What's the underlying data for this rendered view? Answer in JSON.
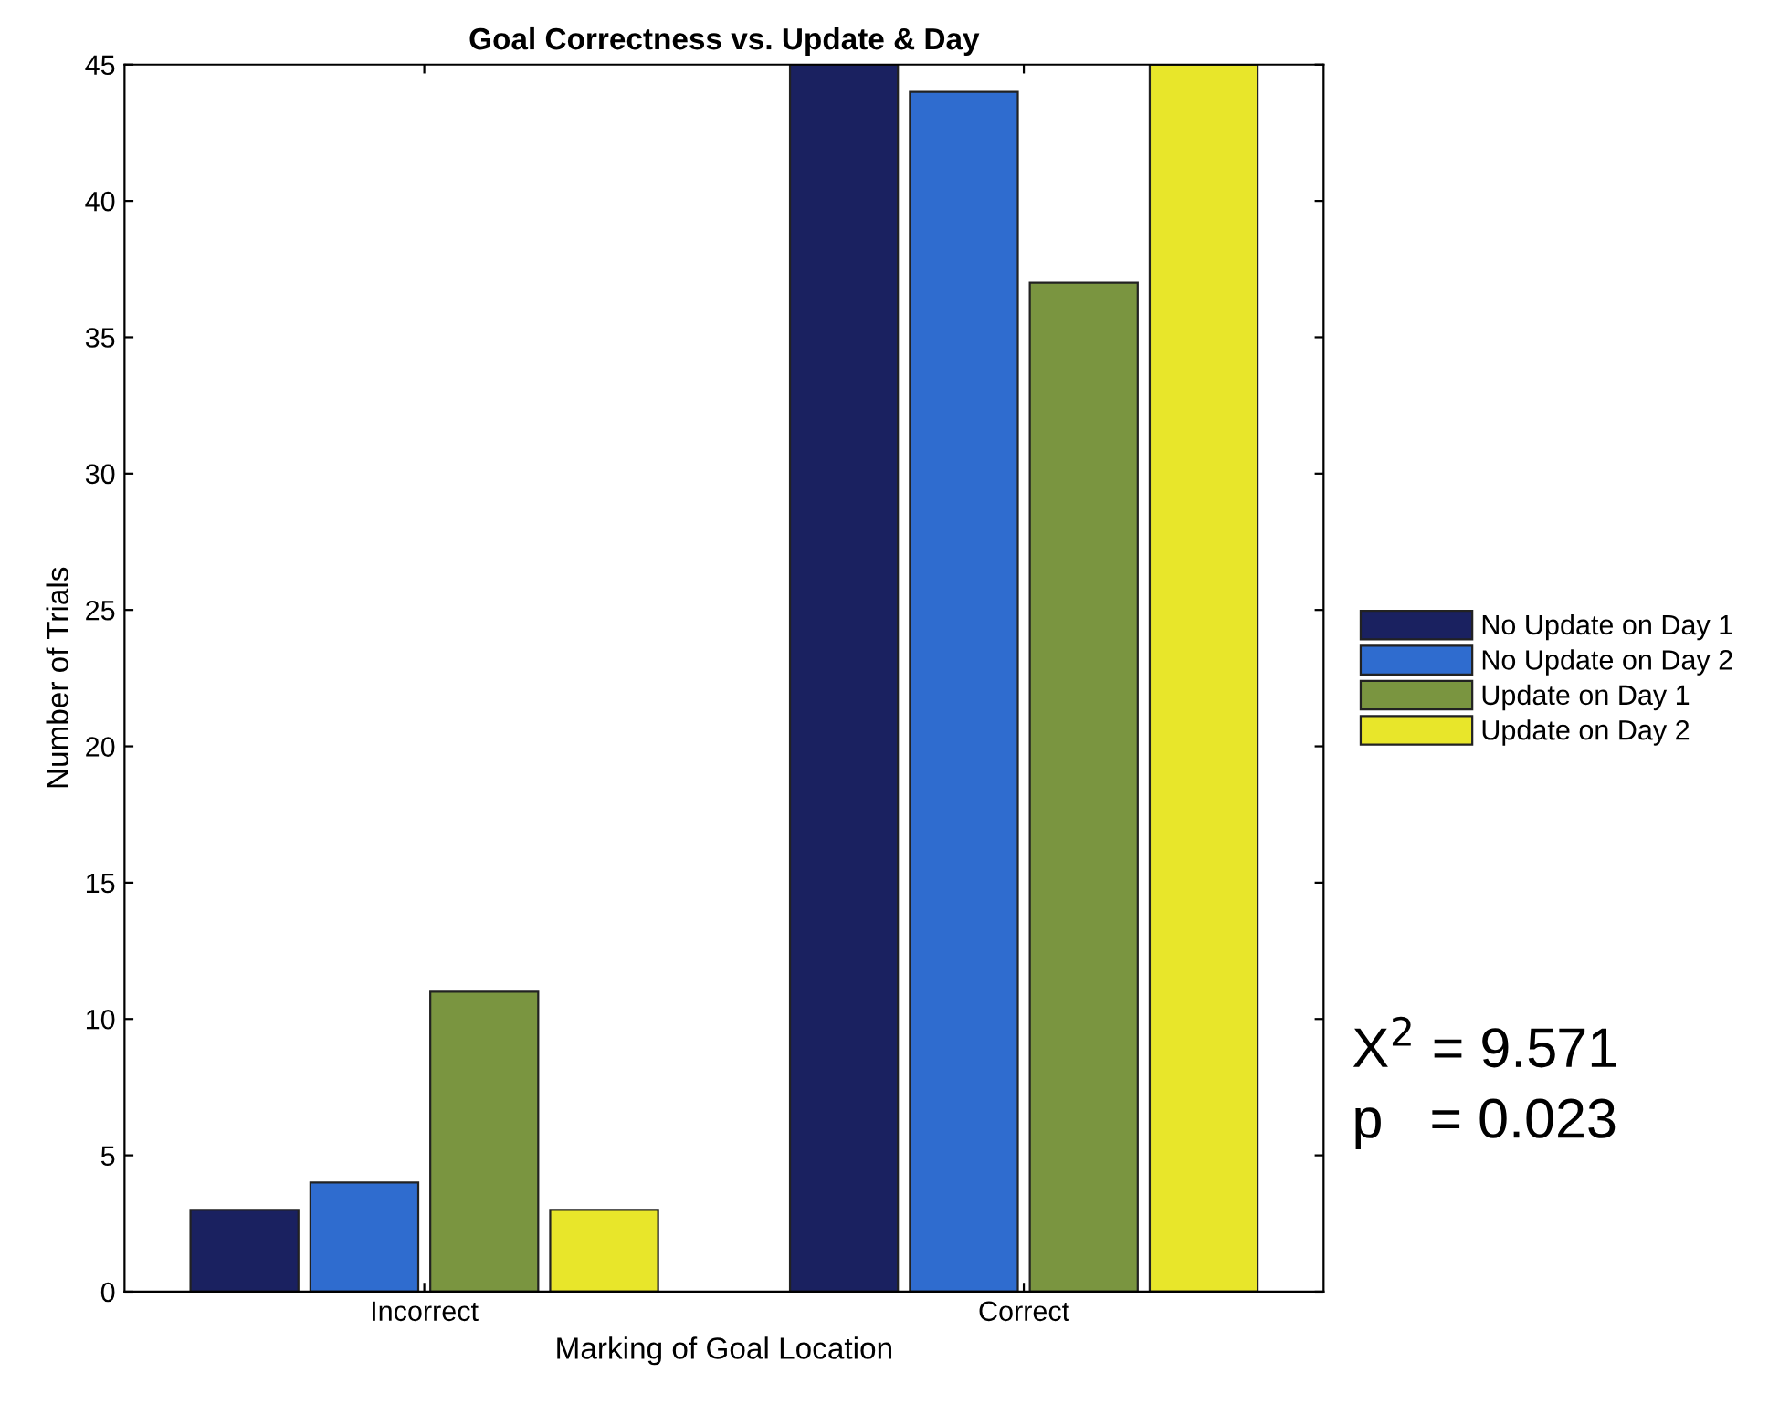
{
  "chart_data": {
    "type": "bar",
    "title": "Goal Correctness vs. Update & Day",
    "xlabel": "Marking of Goal Location",
    "ylabel": "Number of Trials",
    "categories": [
      "Incorrect",
      "Correct"
    ],
    "series": [
      {
        "name": "No Update on Day 1",
        "color": "#1a2160",
        "values": [
          3,
          45
        ]
      },
      {
        "name": "No Update on Day 2",
        "color": "#2f6ccf",
        "values": [
          4,
          44
        ]
      },
      {
        "name": "Update on Day 1",
        "color": "#7a9540",
        "values": [
          11,
          37
        ]
      },
      {
        "name": "Update on Day 2",
        "color": "#e8e62a",
        "values": [
          3,
          45
        ]
      }
    ],
    "ylim": [
      0,
      45
    ],
    "yticks": [
      0,
      5,
      10,
      15,
      20,
      25,
      30,
      35,
      40,
      45
    ],
    "grid": false,
    "legend": "right",
    "annotations": [
      "X$^{2}$ = 9.571",
      "p   = 0.023"
    ]
  }
}
